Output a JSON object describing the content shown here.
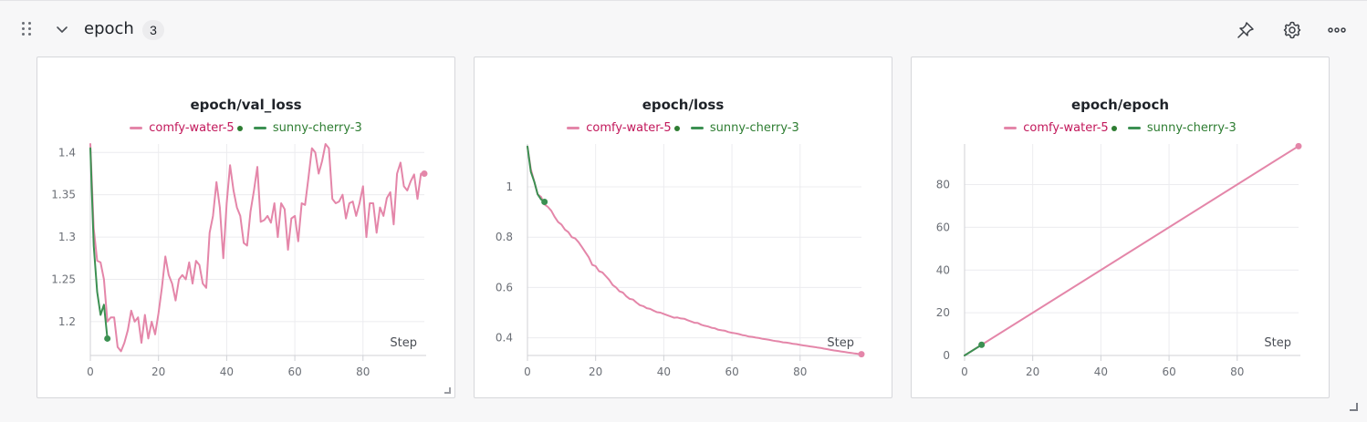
{
  "section": {
    "title": "epoch",
    "count": "3",
    "icons": [
      "drag-handle-icon",
      "chevron-down-icon",
      "pin-icon",
      "gear-icon",
      "more-horizontal-icon"
    ]
  },
  "colors": {
    "comfy_water_5": "#e486a9",
    "comfy_water_5_label": "#c2185b",
    "sunny_cherry_3": "#3c9052",
    "sunny_cherry_3_label": "#2e7d32",
    "grid": "#ececef",
    "axis": "#d0d2d6",
    "tick_text": "#6b6f76"
  },
  "panels": [
    {
      "title": "epoch/val_loss",
      "legend": [
        "comfy-water-5",
        "sunny-cherry-3"
      ],
      "x_axis_label": "Step",
      "chart_data": {
        "type": "line",
        "title": "epoch/val_loss",
        "xlabel": "Step",
        "ylabel": "",
        "xlim": [
          0,
          98
        ],
        "ylim": [
          1.16,
          1.41
        ],
        "xticks": [
          0,
          20,
          40,
          60,
          80
        ],
        "yticks": [
          1.2,
          1.25,
          1.3,
          1.35,
          1.4
        ],
        "ytick_labels": [
          "1.2",
          "1.25",
          "1.3",
          "1.35",
          "1.4"
        ],
        "grid": true,
        "legend_position": "top-center",
        "series": [
          {
            "name": "comfy-water-5",
            "x": [
              0,
              1,
              2,
              3,
              4,
              5,
              6,
              7,
              8,
              9,
              10,
              11,
              12,
              13,
              14,
              15,
              16,
              17,
              18,
              19,
              20,
              21,
              22,
              23,
              24,
              25,
              26,
              27,
              28,
              29,
              30,
              31,
              32,
              33,
              34,
              35,
              36,
              37,
              38,
              39,
              40,
              41,
              42,
              43,
              44,
              45,
              46,
              47,
              48,
              49,
              50,
              51,
              52,
              53,
              54,
              55,
              56,
              57,
              58,
              59,
              60,
              61,
              62,
              63,
              64,
              65,
              66,
              67,
              68,
              69,
              70,
              71,
              72,
              73,
              74,
              75,
              76,
              77,
              78,
              79,
              80,
              81,
              82,
              83,
              84,
              85,
              86,
              87,
              88,
              89,
              90,
              91,
              92,
              93,
              94,
              95,
              96,
              97,
              98
            ],
            "y": [
              1.41,
              1.31,
              1.272,
              1.27,
              1.25,
              1.2,
              1.205,
              1.205,
              1.17,
              1.165,
              1.175,
              1.19,
              1.213,
              1.2,
              1.205,
              1.175,
              1.208,
              1.18,
              1.2,
              1.185,
              1.21,
              1.24,
              1.277,
              1.255,
              1.245,
              1.225,
              1.25,
              1.255,
              1.25,
              1.27,
              1.245,
              1.272,
              1.267,
              1.245,
              1.24,
              1.305,
              1.325,
              1.365,
              1.335,
              1.275,
              1.34,
              1.385,
              1.355,
              1.335,
              1.325,
              1.293,
              1.29,
              1.33,
              1.355,
              1.383,
              1.318,
              1.32,
              1.325,
              1.317,
              1.34,
              1.3,
              1.34,
              1.333,
              1.285,
              1.322,
              1.325,
              1.295,
              1.34,
              1.338,
              1.37,
              1.405,
              1.4,
              1.375,
              1.39,
              1.41,
              1.405,
              1.345,
              1.34,
              1.342,
              1.35,
              1.322,
              1.34,
              1.342,
              1.325,
              1.34,
              1.36,
              1.3,
              1.34,
              1.34,
              1.305,
              1.335,
              1.325,
              1.346,
              1.353,
              1.315,
              1.375,
              1.388,
              1.36,
              1.355,
              1.366,
              1.374,
              1.345,
              1.375,
              1.375
            ]
          },
          {
            "name": "sunny-cherry-3",
            "x": [
              0,
              1,
              2,
              3,
              4,
              5
            ],
            "y": [
              1.405,
              1.29,
              1.235,
              1.208,
              1.22,
              1.18
            ]
          }
        ]
      }
    },
    {
      "title": "epoch/loss",
      "legend": [
        "comfy-water-5",
        "sunny-cherry-3"
      ],
      "x_axis_label": "Step",
      "chart_data": {
        "type": "line",
        "title": "epoch/loss",
        "xlabel": "Step",
        "ylabel": "",
        "xlim": [
          0,
          98
        ],
        "ylim": [
          0.33,
          1.17
        ],
        "xticks": [
          0,
          20,
          40,
          60,
          80
        ],
        "yticks": [
          0.4,
          0.6,
          0.8,
          1.0
        ],
        "ytick_labels": [
          "0.4",
          "0.6",
          "0.8",
          "1"
        ],
        "grid": true,
        "legend_position": "top-center",
        "series": [
          {
            "name": "comfy-water-5",
            "x": [
              0,
              1,
              2,
              3,
              4,
              5,
              6,
              7,
              8,
              9,
              10,
              11,
              12,
              13,
              14,
              15,
              16,
              17,
              18,
              19,
              20,
              21,
              22,
              23,
              24,
              25,
              26,
              27,
              28,
              29,
              30,
              31,
              32,
              33,
              34,
              35,
              36,
              37,
              38,
              39,
              40,
              41,
              42,
              43,
              44,
              45,
              46,
              47,
              48,
              49,
              50,
              51,
              52,
              53,
              54,
              55,
              56,
              57,
              58,
              59,
              60,
              61,
              62,
              63,
              64,
              65,
              66,
              67,
              68,
              69,
              70,
              71,
              72,
              73,
              74,
              75,
              76,
              77,
              78,
              79,
              80,
              81,
              82,
              83,
              84,
              85,
              86,
              87,
              88,
              89,
              90,
              91,
              92,
              93,
              94,
              95,
              96,
              97,
              98
            ],
            "y": [
              1.16,
              1.07,
              1.02,
              0.97,
              0.96,
              0.93,
              0.92,
              0.905,
              0.88,
              0.86,
              0.85,
              0.83,
              0.82,
              0.8,
              0.795,
              0.78,
              0.76,
              0.74,
              0.72,
              0.69,
              0.685,
              0.665,
              0.66,
              0.645,
              0.63,
              0.61,
              0.6,
              0.585,
              0.58,
              0.565,
              0.555,
              0.552,
              0.54,
              0.53,
              0.526,
              0.518,
              0.515,
              0.508,
              0.502,
              0.5,
              0.495,
              0.49,
              0.485,
              0.48,
              0.481,
              0.477,
              0.476,
              0.47,
              0.465,
              0.46,
              0.459,
              0.452,
              0.448,
              0.445,
              0.44,
              0.438,
              0.432,
              0.43,
              0.428,
              0.423,
              0.42,
              0.418,
              0.415,
              0.411,
              0.409,
              0.405,
              0.404,
              0.401,
              0.399,
              0.396,
              0.394,
              0.392,
              0.389,
              0.387,
              0.385,
              0.382,
              0.381,
              0.379,
              0.376,
              0.375,
              0.372,
              0.37,
              0.368,
              0.366,
              0.364,
              0.362,
              0.36,
              0.357,
              0.355,
              0.352,
              0.35,
              0.348,
              0.346,
              0.344,
              0.342,
              0.34,
              0.338,
              0.336,
              0.335
            ]
          },
          {
            "name": "sunny-cherry-3",
            "x": [
              0,
              1,
              2,
              3,
              4,
              5
            ],
            "y": [
              1.16,
              1.06,
              1.02,
              0.97,
              0.95,
              0.94
            ]
          }
        ]
      }
    },
    {
      "title": "epoch/epoch",
      "legend": [
        "comfy-water-5",
        "sunny-cherry-3"
      ],
      "x_axis_label": "Step",
      "chart_data": {
        "type": "line",
        "title": "epoch/epoch",
        "xlabel": "Step",
        "ylabel": "",
        "xlim": [
          0,
          98
        ],
        "ylim": [
          0,
          99
        ],
        "xticks": [
          0,
          20,
          40,
          60,
          80
        ],
        "yticks": [
          0,
          20,
          40,
          60,
          80
        ],
        "ytick_labels": [
          "0",
          "20",
          "40",
          "60",
          "80"
        ],
        "grid": true,
        "legend_position": "top-center",
        "series": [
          {
            "name": "comfy-water-5",
            "x": [
              0,
              98
            ],
            "y": [
              0,
              98
            ]
          },
          {
            "name": "sunny-cherry-3",
            "x": [
              0,
              5
            ],
            "y": [
              0,
              5
            ]
          }
        ]
      }
    }
  ]
}
